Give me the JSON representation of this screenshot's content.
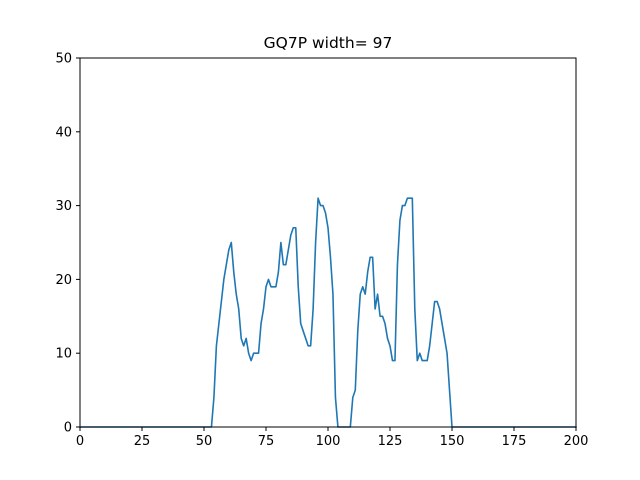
{
  "chart_data": {
    "type": "line",
    "title": "GQ7P width= 97",
    "xlabel": "",
    "ylabel": "",
    "xlim": [
      0,
      200
    ],
    "ylim": [
      0,
      50
    ],
    "grid": false,
    "xticks": [
      0,
      25,
      50,
      75,
      100,
      125,
      150,
      175,
      200
    ],
    "yticks": [
      0,
      10,
      20,
      30,
      40,
      50
    ],
    "xtick_labels": [
      "0",
      "25",
      "50",
      "75",
      "100",
      "125",
      "150",
      "175",
      "200"
    ],
    "ytick_labels": [
      "0",
      "10",
      "20",
      "30",
      "40",
      "50"
    ],
    "series": [
      {
        "color": "#1f77b4",
        "x": [
          0,
          53,
          54,
          55,
          56,
          57,
          58,
          59,
          60,
          61,
          62,
          63,
          64,
          65,
          66,
          67,
          68,
          69,
          70,
          71,
          72,
          73,
          74,
          75,
          76,
          77,
          78,
          79,
          80,
          81,
          82,
          83,
          84,
          85,
          86,
          87,
          88,
          89,
          90,
          91,
          92,
          93,
          94,
          95,
          96,
          97,
          98,
          99,
          100,
          101,
          102,
          103,
          104,
          105,
          106,
          107,
          108,
          109,
          110,
          111,
          112,
          113,
          114,
          115,
          116,
          117,
          118,
          119,
          120,
          121,
          122,
          123,
          124,
          125,
          126,
          127,
          128,
          129,
          130,
          131,
          132,
          133,
          134,
          135,
          136,
          137,
          138,
          139,
          140,
          141,
          142,
          143,
          144,
          145,
          146,
          147,
          148,
          149,
          150,
          200
        ],
        "y": [
          0,
          0,
          4,
          11,
          14,
          17,
          20,
          22,
          24,
          25,
          21,
          18,
          16,
          12,
          11,
          12,
          10,
          9,
          10,
          10,
          10,
          14,
          16,
          19,
          20,
          19,
          19,
          19,
          21,
          25,
          22,
          22,
          24,
          26,
          27,
          27,
          19,
          14,
          13,
          12,
          11,
          11,
          16,
          25,
          31,
          30,
          30,
          29,
          27,
          23,
          18,
          4,
          0,
          0,
          0,
          0,
          0,
          0,
          4,
          5,
          13,
          18,
          19,
          18,
          21,
          23,
          23,
          16,
          18,
          15,
          15,
          14,
          12,
          11,
          9,
          9,
          22,
          28,
          30,
          30,
          31,
          31,
          31,
          16,
          9,
          10,
          9,
          9,
          9,
          11,
          14,
          17,
          17,
          16,
          14,
          12,
          10,
          5,
          0,
          0
        ]
      }
    ]
  }
}
